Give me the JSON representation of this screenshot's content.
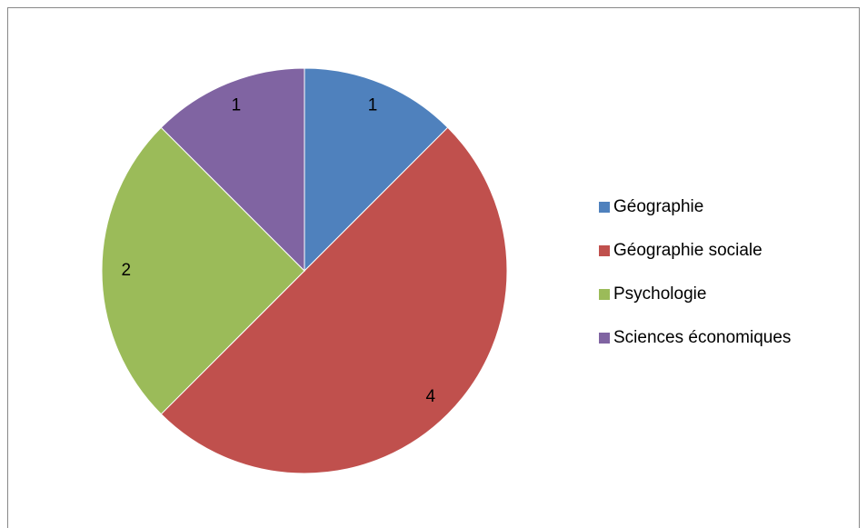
{
  "chart_data": {
    "type": "pie",
    "categories": [
      "Géographie",
      "Géographie sociale",
      "Psychologie",
      "Sciences économiques"
    ],
    "values": [
      1,
      4,
      2,
      1
    ],
    "colors": [
      "#4f81bd",
      "#c0504d",
      "#9bbb59",
      "#8064a2"
    ],
    "legend": "right"
  }
}
